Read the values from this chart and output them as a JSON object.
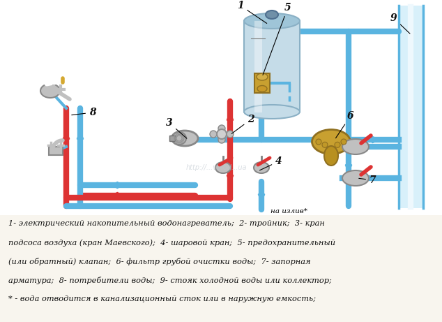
{
  "bg_color": "#ffffff",
  "text_area_color": "#f8f5ee",
  "pipe_cold": "#5ab4e0",
  "pipe_hot": "#dd3333",
  "pipe_lw": 6,
  "boiler_color": "#c5dce8",
  "boiler_top_color": "#9fc5d8",
  "boiler_edge": "#8ab0c5",
  "brass_color": "#c8a030",
  "brass_edge": "#907020",
  "silver_color": "#c0c0c0",
  "silver_edge": "#888888",
  "stoyak_fill": "#d8f0fa",
  "stoyak_inner": "#eef8fd",
  "stoyak_edge": "#5ab4e0",
  "label_color": "#111111",
  "watermark_color": "#c0c8d0",
  "na_izliv": "на излив*",
  "legend": [
    "1- электрический накопительный водонагреватель;  2- тройник;  3- кран",
    "подсоса воздуха (кран Маевского);  4- шаровой кран;  5- предохранительный",
    "(или обратный) клапан;  6- фильтр грубой очистки воды;  7- запорная",
    "арматура;  8- потребители воды;  9- стояк холодной воды или коллектор;",
    "* - вода отводится в канализационный сток или в наружную емкость;"
  ]
}
